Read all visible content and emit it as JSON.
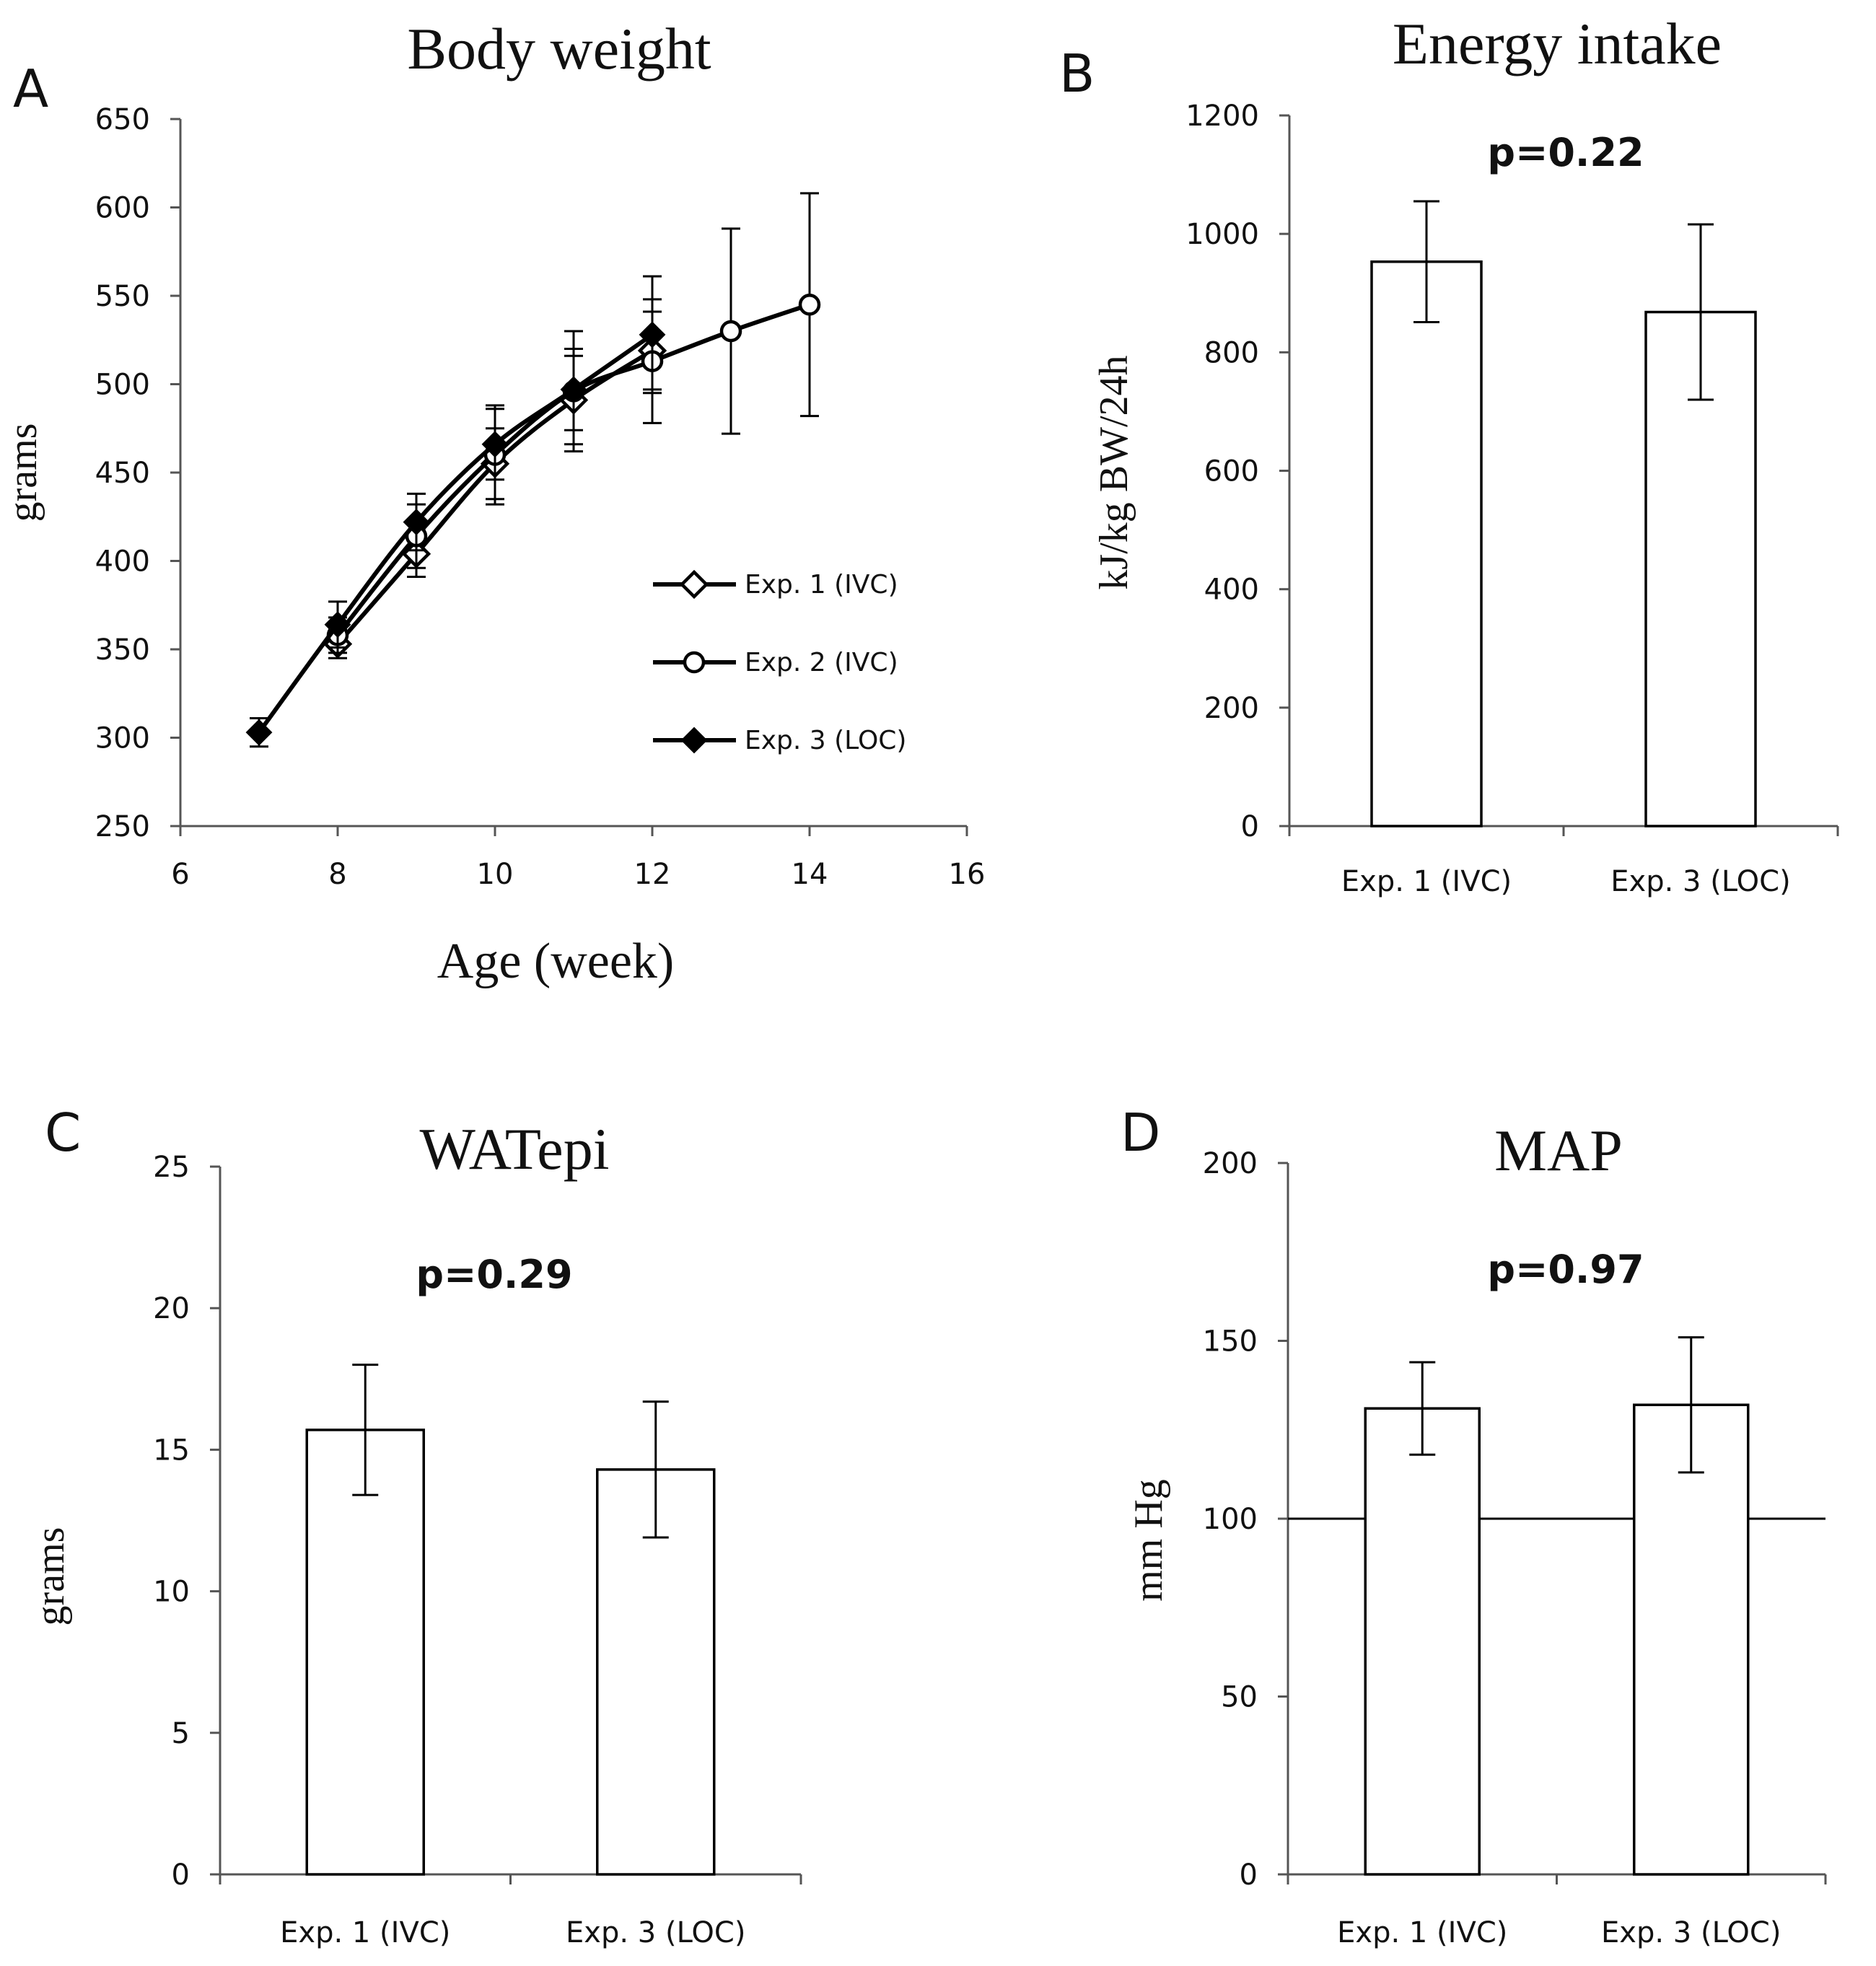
{
  "chart_data": [
    {
      "panel": "A",
      "type": "line",
      "title": "Body weight",
      "xlabel": "Age (week)",
      "ylabel": "grams",
      "xlim": [
        6,
        16
      ],
      "ylim": [
        250,
        650
      ],
      "xticks": [
        6,
        8,
        10,
        12,
        14,
        16
      ],
      "yticks": [
        250,
        300,
        350,
        400,
        450,
        500,
        550,
        600,
        650
      ],
      "series": [
        {
          "name": "Exp. 1 (IVC)",
          "marker": "open-diamond",
          "x": [
            8,
            9,
            10,
            11,
            12
          ],
          "y": [
            353,
            404,
            455,
            491,
            519
          ],
          "err": [
            8,
            13,
            20,
            25,
            22
          ]
        },
        {
          "name": "Exp. 2 (IVC)",
          "marker": "open-circle",
          "x": [
            8,
            9,
            10,
            11,
            12,
            13,
            14
          ],
          "y": [
            358,
            414,
            460,
            496,
            513,
            530,
            545
          ],
          "err": [
            10,
            18,
            28,
            34,
            35,
            58,
            63
          ]
        },
        {
          "name": "Exp. 3 (LOC)",
          "marker": "filled-diamond",
          "x": [
            7,
            8,
            9,
            10,
            11,
            12
          ],
          "y": [
            303,
            364,
            422,
            466,
            497,
            528
          ],
          "err": [
            8,
            13,
            16,
            20,
            23,
            33
          ]
        }
      ]
    },
    {
      "panel": "B",
      "type": "bar",
      "title": "Energy intake",
      "ylabel": "kJ/kg BW/24h",
      "annotation": "p=0.22",
      "categories": [
        "Exp. 1 (IVC)",
        "Exp. 3 (LOC)"
      ],
      "values": [
        953,
        868
      ],
      "errors": [
        102,
        148
      ],
      "ylim": [
        0,
        1200
      ],
      "yticks": [
        0,
        200,
        400,
        600,
        800,
        1000,
        1200
      ]
    },
    {
      "panel": "C",
      "type": "bar",
      "title": "WATepi",
      "ylabel": "grams",
      "annotation": "p=0.29",
      "categories": [
        "Exp. 1 (IVC)",
        "Exp. 3 (LOC)"
      ],
      "values": [
        15.7,
        14.3
      ],
      "errors": [
        2.3,
        2.4
      ],
      "ylim": [
        0,
        25
      ],
      "yticks": [
        0,
        5,
        10,
        15,
        20,
        25
      ]
    },
    {
      "panel": "D",
      "type": "bar",
      "title": "MAP",
      "ylabel": "mm Hg",
      "annotation": "p=0.97",
      "categories": [
        "Exp. 1 (IVC)",
        "Exp. 3 (LOC)"
      ],
      "values": [
        131,
        132
      ],
      "errors": [
        13,
        19
      ],
      "ylim": [
        0,
        200
      ],
      "yticks": [
        0,
        50,
        100,
        150,
        200
      ],
      "reference_line": 100
    }
  ]
}
